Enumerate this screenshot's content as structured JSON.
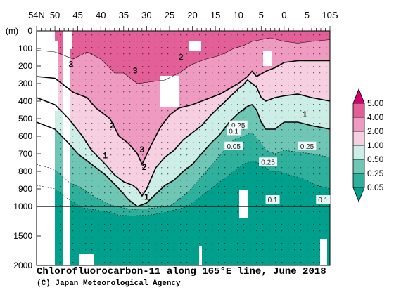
{
  "chart_data": {
    "type": "heatmap",
    "title": "Chlorofluorocarbon-11 along 165°E line, June 2018",
    "credit": "(C) Japan Meteorological Agency",
    "ylabel": "(m)",
    "y_ticks": [
      0,
      100,
      200,
      300,
      400,
      500,
      600,
      700,
      800,
      900,
      1000,
      1500,
      2000
    ],
    "y_upper_range": [
      0,
      1000
    ],
    "y_lower_range": [
      1000,
      2000
    ],
    "x_ticks": [
      "54N",
      "50",
      "45",
      "40",
      "35",
      "30",
      "25",
      "20",
      "15",
      "10",
      "5",
      "0",
      "5",
      "10S"
    ],
    "x_tick_lats": [
      54,
      50,
      45,
      40,
      35,
      30,
      25,
      20,
      15,
      10,
      5,
      0,
      -5,
      -10
    ],
    "xlim": [
      54,
      -10
    ],
    "colorbar": {
      "levels": [
        "0.05",
        "0.25",
        "0.50",
        "1.00",
        "2.00",
        "4.00",
        "5.00"
      ],
      "colors": [
        "#01a08c",
        "#2fb09c",
        "#6fc6b4",
        "#cdeee6",
        "#f6d0e0",
        "#ef9ac0",
        "#e25f98",
        "#d5006d"
      ]
    },
    "contour_labels": [
      {
        "text": "3",
        "lat": 46.5,
        "depth": 190
      },
      {
        "text": "3",
        "lat": 32.5,
        "depth": 225
      },
      {
        "text": "3",
        "lat": 31,
        "depth": 675
      },
      {
        "text": "2",
        "lat": 22.5,
        "depth": 150
      },
      {
        "text": "2",
        "lat": 37.5,
        "depth": 540
      },
      {
        "text": "2",
        "lat": 30.5,
        "depth": 775
      },
      {
        "text": "1",
        "lat": 39,
        "depth": 710
      },
      {
        "text": "1",
        "lat": 30,
        "depth": 945
      },
      {
        "text": "1",
        "lat": -4.5,
        "depth": 475
      },
      {
        "text": "0.25",
        "lat": 10,
        "depth": 535
      },
      {
        "text": "0.1",
        "lat": 11,
        "depth": 570
      },
      {
        "text": "0.05",
        "lat": 11,
        "depth": 655
      },
      {
        "text": "0.25",
        "lat": 3.5,
        "depth": 745
      },
      {
        "text": "0.25",
        "lat": -5,
        "depth": 655
      },
      {
        "text": "0.1",
        "lat": 2.5,
        "depth": 960
      },
      {
        "text": "0.1",
        "lat": -8.5,
        "depth": 960
      }
    ]
  }
}
